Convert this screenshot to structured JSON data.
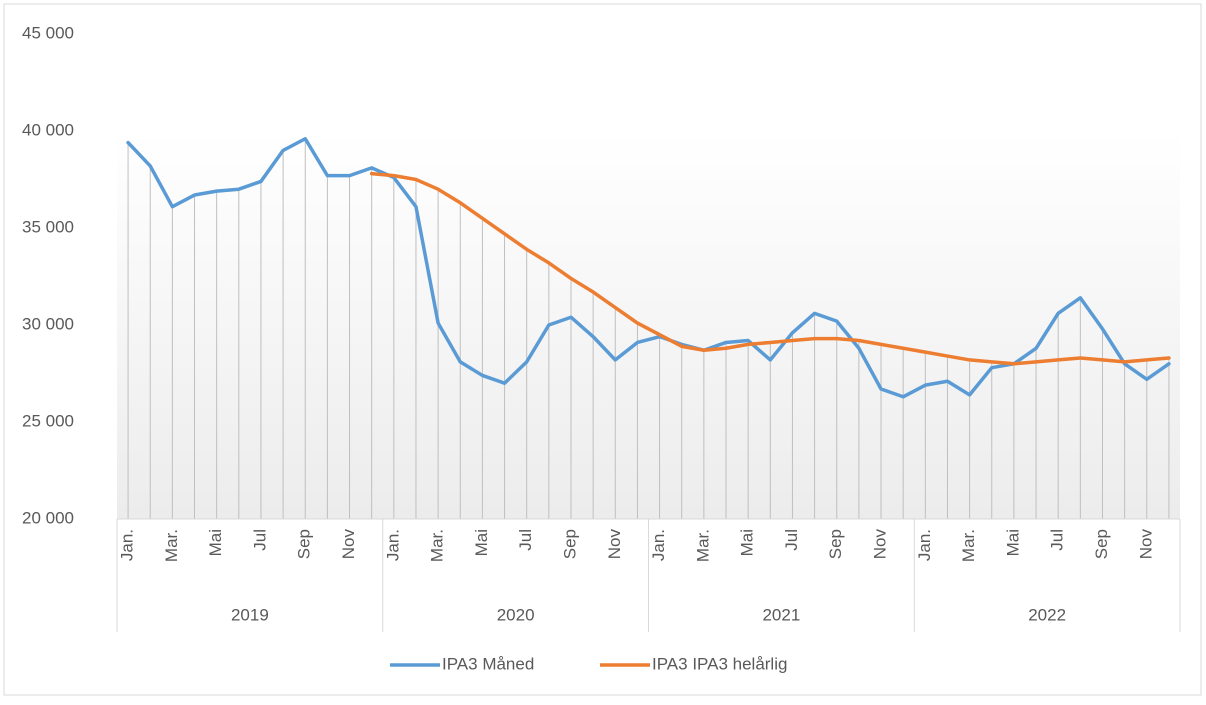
{
  "chart_data": {
    "type": "line",
    "categories": [
      "Jan.",
      null,
      "Mar.",
      null,
      "Mai",
      null,
      "Jul",
      null,
      "Sep",
      null,
      "Nov",
      null,
      "Jan.",
      null,
      "Mar.",
      null,
      "Mai",
      null,
      "Jul",
      null,
      "Sep",
      null,
      "Nov",
      null,
      "Jan.",
      null,
      "Mar.",
      null,
      "Mai",
      null,
      "Jul",
      null,
      "Sep",
      null,
      "Nov",
      null,
      "Jan.",
      null,
      "Mar.",
      null,
      "Mai",
      null,
      "Jul",
      null,
      "Sep",
      null,
      "Nov",
      null
    ],
    "groups": [
      "2019",
      "2020",
      "2021",
      "2022"
    ],
    "series": [
      {
        "name": "IPA3 Måned",
        "color": "#5b9bd5",
        "values": [
          39400,
          38200,
          36100,
          36700,
          36900,
          37000,
          37400,
          39000,
          39600,
          37700,
          37700,
          38100,
          37600,
          36100,
          30100,
          28100,
          27400,
          27000,
          28100,
          30000,
          30400,
          29400,
          28200,
          29100,
          29400,
          29000,
          28700,
          29100,
          29200,
          28200,
          29600,
          30600,
          30200,
          28800,
          26700,
          26300,
          26900,
          27100,
          26400,
          27800,
          28000,
          28800,
          30600,
          31400,
          29800,
          28000,
          27200,
          28000
        ]
      },
      {
        "name": "IPA3 IPA3 helårlig",
        "color": "#ed7d31",
        "values": [
          null,
          null,
          null,
          null,
          null,
          null,
          null,
          null,
          null,
          null,
          null,
          37800,
          37700,
          37500,
          37000,
          36300,
          35500,
          34700,
          33900,
          33200,
          32400,
          31700,
          30900,
          30100,
          29500,
          28900,
          28700,
          28800,
          29000,
          29100,
          29200,
          29300,
          29300,
          29200,
          29000,
          28800,
          28600,
          28400,
          28200,
          28100,
          28000,
          28100,
          28200,
          28300,
          28200,
          28100,
          28200,
          28300
        ]
      }
    ],
    "ylim": [
      20000,
      45000
    ],
    "yticks": [
      {
        "value": 20000,
        "label": "20 000"
      },
      {
        "value": 25000,
        "label": "25 000"
      },
      {
        "value": 30000,
        "label": "30 000"
      },
      {
        "value": 35000,
        "label": "35 000"
      },
      {
        "value": 40000,
        "label": "40 000"
      },
      {
        "value": 45000,
        "label": "45 000"
      }
    ],
    "drop_lines": true,
    "legend": "bottom"
  }
}
